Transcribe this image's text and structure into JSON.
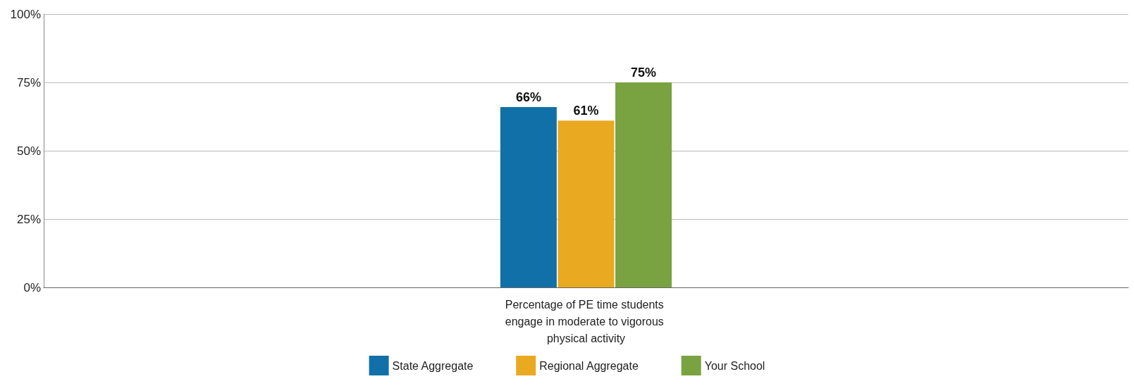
{
  "chart_data": {
    "type": "bar",
    "categories": [
      "Percentage of PE time students engage in moderate to vigorous physical activity"
    ],
    "series": [
      {
        "name": "State Aggregate",
        "color": "#1170a8",
        "values": [
          66
        ],
        "value_labels": [
          "66%"
        ]
      },
      {
        "name": "Regional Aggregate",
        "color": "#e9a920",
        "values": [
          61
        ],
        "value_labels": [
          "61%"
        ]
      },
      {
        "name": "Your School",
        "color": "#79a240",
        "values": [
          75
        ],
        "value_labels": [
          "75%"
        ]
      }
    ],
    "ylim": [
      0,
      100
    ],
    "yticks": [
      {
        "value": 0,
        "label": "0%"
      },
      {
        "value": 25,
        "label": "25%"
      },
      {
        "value": 50,
        "label": "50%"
      },
      {
        "value": 75,
        "label": "75%"
      },
      {
        "value": 100,
        "label": "100%"
      }
    ],
    "grid": "y",
    "legend": "bottom"
  }
}
